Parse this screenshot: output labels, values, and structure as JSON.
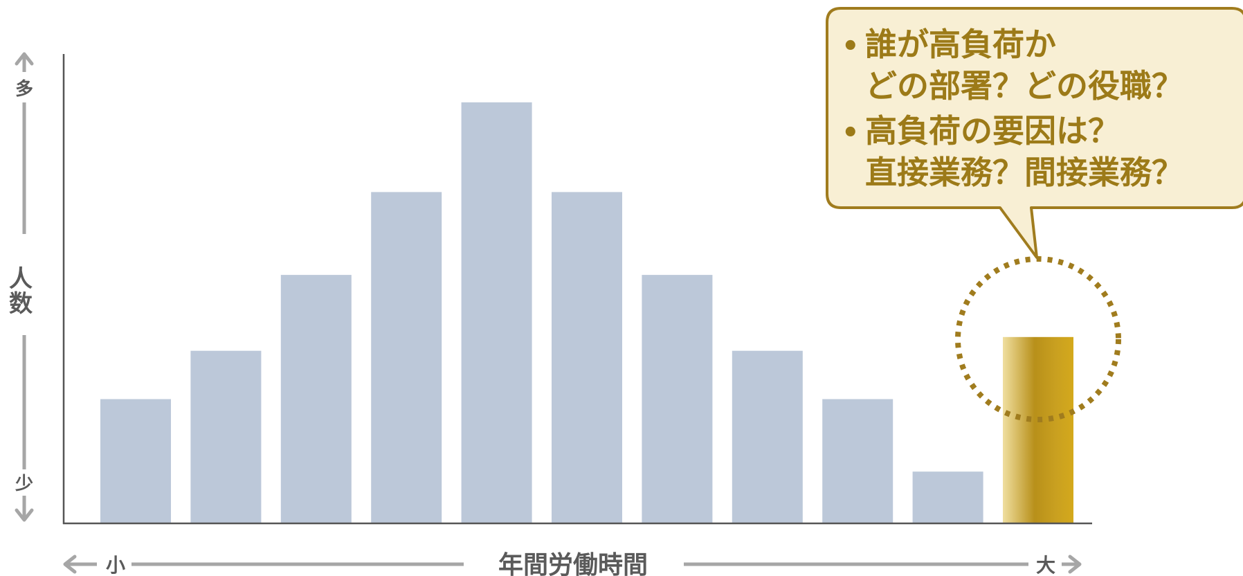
{
  "chart_data": {
    "type": "bar",
    "categories": [
      "",
      "",
      "",
      "",
      "",
      "",
      "",
      "",
      "",
      "",
      ""
    ],
    "values": [
      18,
      25,
      36,
      48,
      61,
      48,
      36,
      25,
      18,
      7.5,
      27
    ],
    "ylim": [
      0,
      68
    ],
    "grid": false,
    "highlight_index": 10,
    "xlabel": "年間労働時間",
    "x_low_label": "小",
    "x_high_label": "大",
    "ylabel": "人数",
    "y_high_label": "多",
    "y_low_label": "少",
    "callout": {
      "lines": [
        {
          "bullet": "•",
          "text": "誰が高負荷か"
        },
        {
          "bullet": "",
          "text": "どの部署？どの役職？"
        },
        {
          "bullet": "•",
          "text": "高負荷の要因は？"
        },
        {
          "bullet": "",
          "text": "直接業務？間接業務？"
        }
      ]
    }
  },
  "colors": {
    "bar": "#bcc8d9",
    "highlight_bar_light": "#f0dfa0",
    "highlight_bar_dark": "#b8901a",
    "highlight_ring": "#a07c1e",
    "callout_fill": "#f8efd4",
    "callout_border": "#a07c1e",
    "callout_text": "#9c7a18",
    "axis_line": "#555555",
    "arrow": "#a6a6a6",
    "axis_text": "#5a5a5a"
  }
}
